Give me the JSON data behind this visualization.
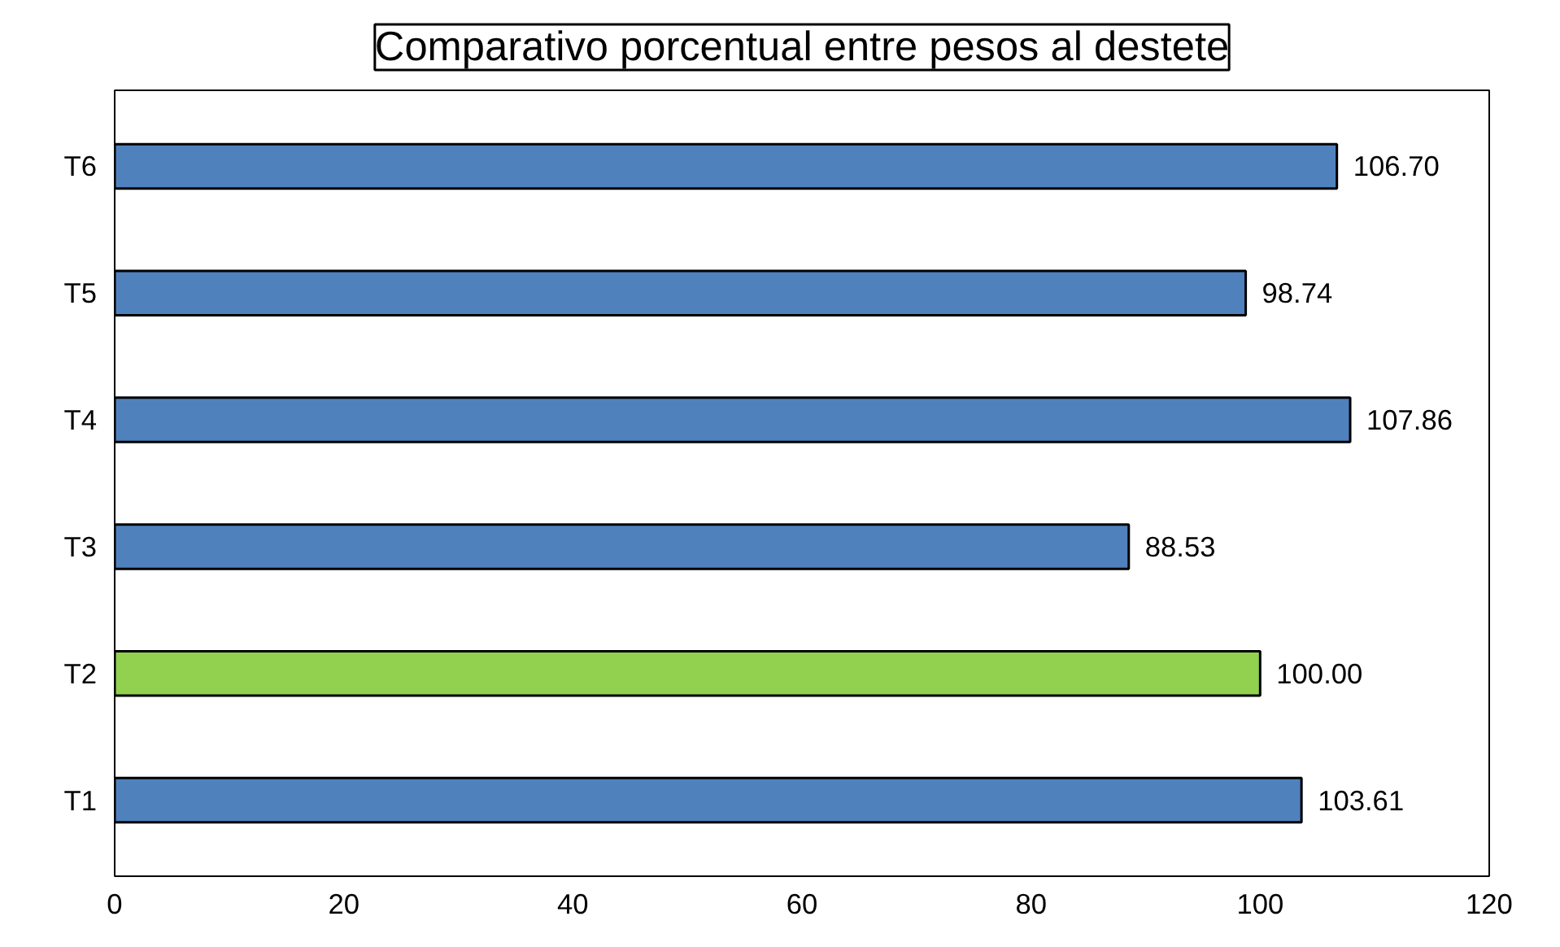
{
  "chart_data": {
    "type": "bar",
    "orientation": "horizontal",
    "title": "Comparativo porcentual entre pesos al destete",
    "categories": [
      "T6",
      "T5",
      "T4",
      "T3",
      "T2",
      "T1"
    ],
    "values": [
      106.7,
      98.74,
      107.86,
      88.53,
      100.0,
      103.61
    ],
    "colors": [
      "#4f81bd",
      "#4f81bd",
      "#4f81bd",
      "#4f81bd",
      "#92d050",
      "#4f81bd"
    ],
    "value_labels": [
      "106.70",
      "98.74",
      "107.86",
      "88.53",
      "100.00",
      "103.61"
    ],
    "xlim": [
      0,
      120
    ],
    "xticks": [
      0,
      20,
      40,
      60,
      80,
      100,
      120
    ],
    "grid": false
  }
}
